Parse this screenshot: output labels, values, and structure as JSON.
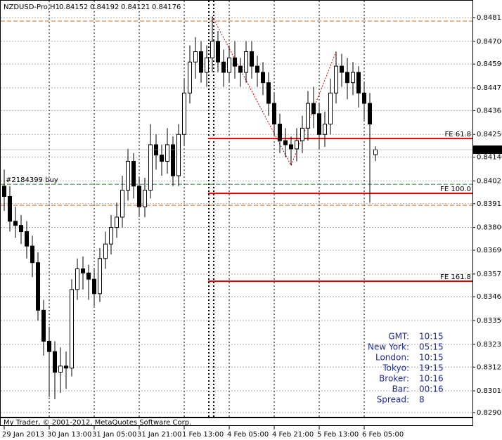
{
  "chart_data": {
    "type": "candlestick",
    "title": "NZDUSD-Pro,H1",
    "categories": [
      "29 Jan 2013",
      null,
      null,
      null,
      null,
      null,
      null,
      null,
      "30 Jan 13:00",
      null,
      null,
      null,
      null,
      null,
      null,
      null,
      "31 Jan 05:00",
      null,
      null,
      null,
      null,
      null,
      null,
      null,
      "31 Jan 21:00",
      null,
      null,
      null,
      null,
      null,
      null,
      null,
      "1 Feb 13:00",
      null,
      null,
      null,
      null,
      null,
      null,
      null,
      "4 Feb 05:00",
      null,
      null,
      null,
      null,
      null,
      null,
      null,
      "4 Feb 21:00",
      null,
      null,
      null,
      null,
      null,
      null,
      null,
      "5 Feb 13:00",
      null,
      null,
      null,
      null,
      null,
      null,
      null,
      "6 Feb 05:00",
      null,
      null
    ],
    "open": [
      0.84,
      0.8395,
      0.8383,
      0.8381,
      0.8378,
      0.8371,
      0.8363,
      0.834,
      0.8325,
      0.832,
      0.831,
      0.8313,
      0.8312,
      0.835,
      0.836,
      0.8358,
      0.8355,
      0.8348,
      0.8365,
      0.8372,
      0.838,
      0.8385,
      0.8398,
      0.8412,
      0.84,
      0.839,
      0.8398,
      0.842,
      0.8415,
      0.8412,
      0.842,
      0.8405,
      0.8425,
      0.8445,
      0.846,
      0.8465,
      0.8455,
      0.8462,
      0.847,
      0.846,
      0.8455,
      0.8462,
      0.8458,
      0.8455,
      0.8465,
      0.8458,
      0.8455,
      0.845,
      0.844,
      0.843,
      0.8422,
      0.842,
      0.8418,
      0.8422,
      0.8428,
      0.844,
      0.8435,
      0.8425,
      0.843,
      0.8445,
      0.8458,
      0.8455,
      0.845,
      0.8455,
      0.8445,
      0.844,
      0.84152
    ],
    "high": [
      0.8408,
      0.84,
      0.839,
      0.8386,
      0.8383,
      0.8376,
      0.8368,
      0.8345,
      0.8332,
      0.8325,
      0.8322,
      0.832,
      0.8355,
      0.8365,
      0.8366,
      0.8362,
      0.836,
      0.837,
      0.8378,
      0.8386,
      0.8392,
      0.8405,
      0.8418,
      0.8416,
      0.8404,
      0.8404,
      0.843,
      0.8425,
      0.842,
      0.8428,
      0.8424,
      0.843,
      0.8452,
      0.8468,
      0.8472,
      0.847,
      0.8468,
      0.8482,
      0.8475,
      0.8466,
      0.8468,
      0.847,
      0.8462,
      0.847,
      0.847,
      0.8463,
      0.846,
      0.8455,
      0.8445,
      0.8435,
      0.8428,
      0.8424,
      0.8428,
      0.8434,
      0.8446,
      0.8448,
      0.844,
      0.8436,
      0.8452,
      0.8465,
      0.8464,
      0.8462,
      0.846,
      0.8458,
      0.845,
      0.8445,
      0.84192
    ],
    "low": [
      0.8388,
      0.8378,
      0.8375,
      0.8372,
      0.8365,
      0.8356,
      0.8335,
      0.8318,
      0.8298,
      0.8297,
      0.83,
      0.8302,
      0.8308,
      0.8345,
      0.835,
      0.8345,
      0.8342,
      0.8344,
      0.836,
      0.8367,
      0.8375,
      0.838,
      0.8393,
      0.8394,
      0.8385,
      0.8385,
      0.8394,
      0.8408,
      0.8405,
      0.8406,
      0.84,
      0.84,
      0.842,
      0.844,
      0.8452,
      0.845,
      0.8448,
      0.8455,
      0.8455,
      0.8448,
      0.845,
      0.8452,
      0.8448,
      0.845,
      0.8452,
      0.8448,
      0.8444,
      0.8434,
      0.8424,
      0.8416,
      0.8414,
      0.841,
      0.8412,
      0.8416,
      0.8422,
      0.8428,
      0.8418,
      0.8419,
      0.8425,
      0.844,
      0.8448,
      0.8442,
      0.8444,
      0.8438,
      0.8432,
      0.8392,
      0.84121
    ],
    "close": [
      0.8395,
      0.8383,
      0.8381,
      0.8378,
      0.8371,
      0.8363,
      0.834,
      0.8325,
      0.832,
      0.831,
      0.8313,
      0.8312,
      0.835,
      0.836,
      0.8358,
      0.8355,
      0.8348,
      0.8365,
      0.8372,
      0.838,
      0.8385,
      0.8398,
      0.8412,
      0.84,
      0.839,
      0.8398,
      0.842,
      0.8415,
      0.8412,
      0.842,
      0.8405,
      0.8425,
      0.8445,
      0.846,
      0.8465,
      0.8455,
      0.8462,
      0.847,
      0.846,
      0.8455,
      0.8462,
      0.8458,
      0.8455,
      0.8465,
      0.8458,
      0.8455,
      0.845,
      0.844,
      0.843,
      0.8422,
      0.842,
      0.8418,
      0.8422,
      0.8428,
      0.844,
      0.8435,
      0.8425,
      0.843,
      0.8445,
      0.8458,
      0.8455,
      0.845,
      0.8455,
      0.8445,
      0.844,
      0.843,
      0.84176
    ],
    "ylim": [
      0.82888,
      0.84859
    ],
    "yticks": [
      0.84815,
      {
        "value": 0.847,
        "label": "0.84700"
      },
      {
        "value": 0.8459,
        "label": "0.84590"
      },
      0.84475,
      0.84365,
      {
        "value": 0.8425,
        "label": "0.84250"
      },
      {
        "value": 0.8414,
        "label": "0.84140"
      },
      0.84025,
      0.83915,
      {
        "value": 0.838,
        "label": "0.83800"
      },
      {
        "value": 0.8369,
        "label": "0.83690"
      },
      0.83575,
      0.83465,
      {
        "value": 0.8335,
        "label": "0.83350"
      },
      0.83235,
      0.83125,
      {
        "value": 0.8301,
        "label": "0.83010"
      },
      0.82905
    ],
    "grid": true,
    "levels": [
      {
        "name": "FE 61.8",
        "value": 0.8423,
        "color": "#e00000"
      },
      {
        "name": "FE 100.0",
        "value": 0.83965,
        "color": "#e00000"
      },
      {
        "name": "FE 161.8",
        "value": 0.8354,
        "color": "#e00000"
      }
    ],
    "order_line": {
      "name": "#2184399 buy",
      "value": 0.84009,
      "color": "#2e8b2e"
    },
    "dash_lines": [
      {
        "value": 0.84798,
        "color": "#d2691e"
      },
      {
        "value": 0.83907,
        "color": "#d2691e"
      }
    ],
    "zigzag": {
      "color": "#e00000",
      "points": [
        {
          "bar": 37,
          "value": 0.8482
        },
        {
          "bar": 51,
          "value": 0.841
        },
        {
          "bar": 59,
          "value": 0.8465
        }
      ]
    },
    "info_panel": [
      {
        "label": "GMT:",
        "value": "10:15"
      },
      {
        "label": "New York:",
        "value": "05:15"
      },
      {
        "label": "London:",
        "value": "10:15"
      },
      {
        "label": "Tokyo:",
        "value": "19:15"
      },
      {
        "label": "Broker:",
        "value": "10:16"
      },
      {
        "label": "Bar:",
        "value": "00:16"
      },
      {
        "label": "Spread:",
        "value": 8
      }
    ],
    "footer": "My Trader, © 2001-2012, MetaQuotes Software Corp."
  }
}
